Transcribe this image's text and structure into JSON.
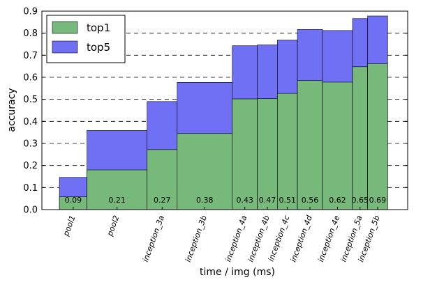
{
  "chart_data": {
    "type": "bar",
    "xlabel": "time / img (ms)",
    "ylabel": "accuracy",
    "ylim": [
      0,
      0.9
    ],
    "yticks": [
      "0.0",
      "0.1",
      "0.2",
      "0.3",
      "0.4",
      "0.5",
      "0.6",
      "0.7",
      "0.8",
      "0.9"
    ],
    "grid": "horizontal dashed",
    "legend_position": "top-left",
    "categories": [
      "pool1",
      "pool2",
      "inception_3a",
      "inception_3b",
      "inception_4a",
      "inception_4b",
      "inception_4c",
      "inception_4d",
      "inception_4e",
      "inception_5a",
      "inception_5b"
    ],
    "time_labels": [
      "0.09",
      "0.21",
      "0.27",
      "0.38",
      "0.43",
      "0.47",
      "0.51",
      "0.56",
      "0.62",
      "0.65",
      "0.69"
    ],
    "time_ms": [
      0.09,
      0.21,
      0.27,
      0.38,
      0.43,
      0.47,
      0.51,
      0.56,
      0.62,
      0.65,
      0.69
    ],
    "series": [
      {
        "name": "top1",
        "color": "#77b97a",
        "values": [
          0.058,
          0.18,
          0.272,
          0.345,
          0.502,
          0.503,
          0.527,
          0.585,
          0.578,
          0.648,
          0.662
        ]
      },
      {
        "name": "top5",
        "color": "#7070f5",
        "values": [
          0.146,
          0.359,
          0.49,
          0.577,
          0.743,
          0.747,
          0.769,
          0.817,
          0.812,
          0.866,
          0.878
        ]
      }
    ]
  }
}
